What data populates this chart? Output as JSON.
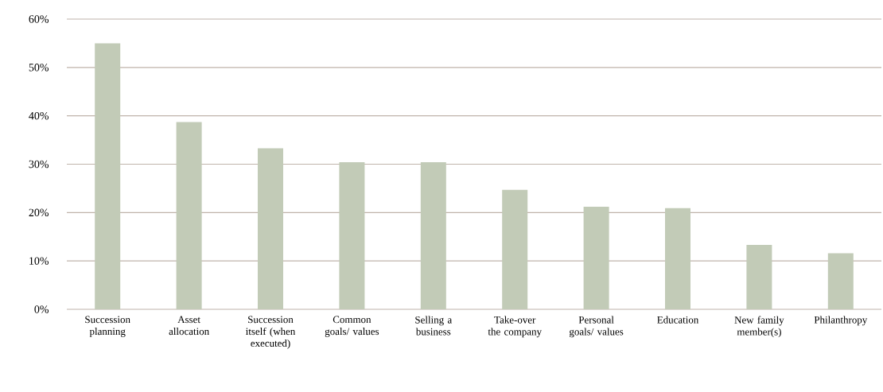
{
  "chart_data": {
    "type": "bar",
    "categories": [
      "Succession planning",
      "Asset allocation",
      "Succession itself (when executed)",
      "Common goals/ values",
      "Selling a business",
      "Take-over the company",
      "Personal goals/ values",
      "Education",
      "New family member(s)",
      "Philanthropy"
    ],
    "values": [
      55,
      38.7,
      33.3,
      30.4,
      30.4,
      24.7,
      21.2,
      20.9,
      13.3,
      11.6
    ],
    "color": "#c2cbb7",
    "ylim": [
      0,
      60
    ],
    "yticks": [
      {
        "value": 0,
        "label": "0%"
      },
      {
        "value": 10,
        "label": "10%"
      },
      {
        "value": 20,
        "label": "20%"
      },
      {
        "value": 30,
        "label": "30%"
      },
      {
        "value": 40,
        "label": "40%"
      },
      {
        "value": 50,
        "label": "50%"
      },
      {
        "value": 60,
        "label": "60%"
      }
    ],
    "grid": "y"
  }
}
